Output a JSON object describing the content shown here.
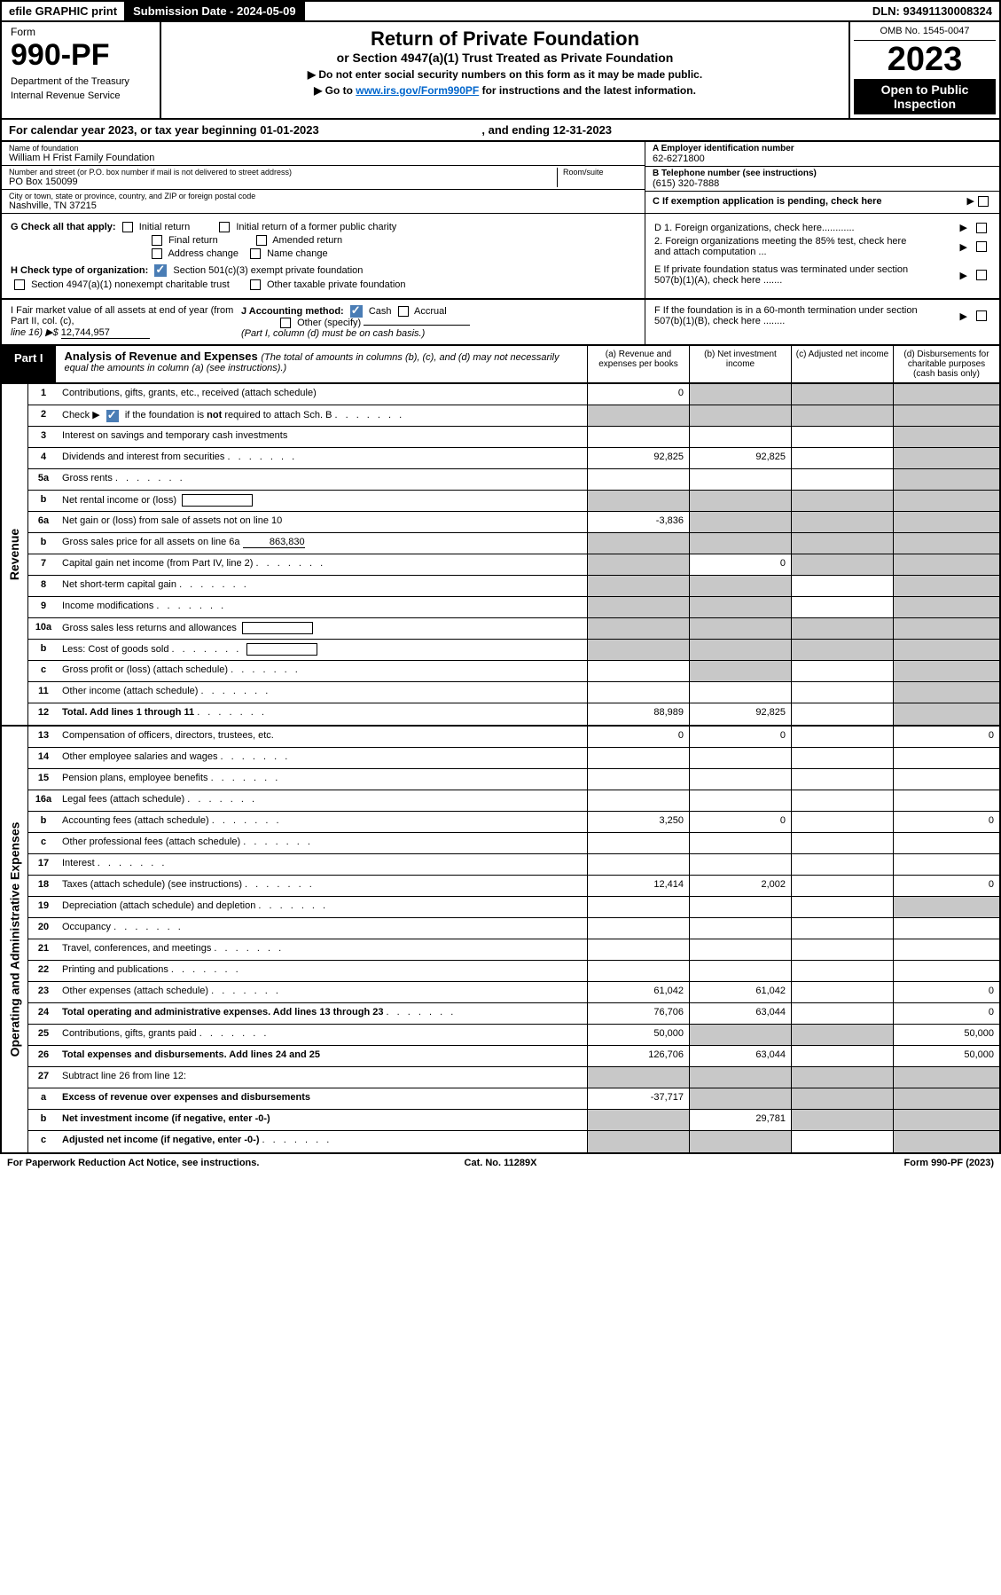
{
  "top": {
    "efile": "efile GRAPHIC print",
    "subdate_label": "Submission Date - 2024-05-09",
    "dln": "DLN: 93491130008324"
  },
  "header": {
    "form_word": "Form",
    "form_no": "990-PF",
    "dept1": "Department of the Treasury",
    "dept2": "Internal Revenue Service",
    "title1": "Return of Private Foundation",
    "title2": "or Section 4947(a)(1) Trust Treated as Private Foundation",
    "instr1": "▶ Do not enter social security numbers on this form as it may be made public.",
    "instr2_pre": "▶ Go to ",
    "instr2_link": "www.irs.gov/Form990PF",
    "instr2_post": " for instructions and the latest information.",
    "omb": "OMB No. 1545-0047",
    "year": "2023",
    "open1": "Open to Public",
    "open2": "Inspection"
  },
  "cal_year": {
    "text_pre": "For calendar year 2023, or tax year beginning ",
    "begin": "01-01-2023",
    "text_mid": " , and ending ",
    "end": "12-31-2023"
  },
  "info": {
    "name_label": "Name of foundation",
    "name_value": "William H Frist Family Foundation",
    "addr_label": "Number and street (or P.O. box number if mail is not delivered to street address)",
    "addr_value": "PO Box 150099",
    "room_label": "Room/suite",
    "city_label": "City or town, state or province, country, and ZIP or foreign postal code",
    "city_value": "Nashville, TN  37215",
    "ein_label": "A Employer identification number",
    "ein_value": "62-6271800",
    "phone_label": "B Telephone number (see instructions)",
    "phone_value": "(615) 320-7888",
    "c_label": "C If exemption application is pending, check here"
  },
  "checks": {
    "g_label": "G Check all that apply:",
    "g_opts": [
      "Initial return",
      "Initial return of a former public charity",
      "Final return",
      "Amended return",
      "Address change",
      "Name change"
    ],
    "h_label": "H Check type of organization:",
    "h_opt1": "Section 501(c)(3) exempt private foundation",
    "h_opt2": "Section 4947(a)(1) nonexempt charitable trust",
    "h_opt3": "Other taxable private foundation",
    "d1": "D 1. Foreign organizations, check here............",
    "d2": "2. Foreign organizations meeting the 85% test, check here and attach computation ...",
    "e": "E  If private foundation status was terminated under section 507(b)(1)(A), check here .......",
    "i_label": "I Fair market value of all assets at end of year (from Part II, col. (c),",
    "i_line": "line 16) ▶$ ",
    "i_value": "12,744,957",
    "j_label": "J Accounting method:",
    "j_cash": "Cash",
    "j_accrual": "Accrual",
    "j_other": "Other (specify)",
    "j_note": "(Part I, column (d) must be on cash basis.)",
    "f": "F  If the foundation is in a 60-month termination under section 507(b)(1)(B), check here ........"
  },
  "part1": {
    "label": "Part I",
    "title_bold": "Analysis of Revenue and Expenses ",
    "title_rest": "(The total of amounts in columns (b), (c), and (d) may not necessarily equal the amounts in column (a) (see instructions).)",
    "col_a": "(a)  Revenue and expenses per books",
    "col_b": "(b)  Net investment income",
    "col_c": "(c)  Adjusted net income",
    "col_d": "(d)  Disbursements for charitable purposes (cash basis only)"
  },
  "sides": {
    "revenue": "Revenue",
    "expenses": "Operating and Administrative Expenses"
  },
  "rows": [
    {
      "n": "1",
      "d": "Contributions, gifts, grants, etc., received (attach schedule)",
      "a": "0",
      "b": "g",
      "c": "g",
      "dd": "g"
    },
    {
      "n": "2",
      "d": "Check ▶ ☑ if the foundation is not required to attach Sch. B",
      "dots": 1,
      "a": "g",
      "b": "g",
      "c": "g",
      "dd": "g",
      "checked": true
    },
    {
      "n": "3",
      "d": "Interest on savings and temporary cash investments",
      "a": "",
      "b": "",
      "c": "",
      "dd": "g"
    },
    {
      "n": "4",
      "d": "Dividends and interest from securities",
      "dots": 1,
      "a": "92,825",
      "b": "92,825",
      "c": "",
      "dd": "g"
    },
    {
      "n": "5a",
      "d": "Gross rents",
      "dots": 1,
      "a": "",
      "b": "",
      "c": "",
      "dd": "g"
    },
    {
      "n": "b",
      "d": "Net rental income or (loss)",
      "box": 1,
      "a": "g",
      "b": "g",
      "c": "g",
      "dd": "g"
    },
    {
      "n": "6a",
      "d": "Net gain or (loss) from sale of assets not on line 10",
      "a": "-3,836",
      "b": "g",
      "c": "g",
      "dd": "g"
    },
    {
      "n": "b",
      "d": "Gross sales price for all assets on line 6a",
      "uval": "863,830",
      "a": "g",
      "b": "g",
      "c": "g",
      "dd": "g"
    },
    {
      "n": "7",
      "d": "Capital gain net income (from Part IV, line 2)",
      "dots": 1,
      "a": "g",
      "b": "0",
      "c": "g",
      "dd": "g"
    },
    {
      "n": "8",
      "d": "Net short-term capital gain",
      "dots": 1,
      "a": "g",
      "b": "g",
      "c": "",
      "dd": "g"
    },
    {
      "n": "9",
      "d": "Income modifications",
      "dots": 1,
      "a": "g",
      "b": "g",
      "c": "",
      "dd": "g"
    },
    {
      "n": "10a",
      "d": "Gross sales less returns and allowances",
      "box": 1,
      "a": "g",
      "b": "g",
      "c": "g",
      "dd": "g"
    },
    {
      "n": "b",
      "d": "Less: Cost of goods sold",
      "dots": 1,
      "box": 1,
      "a": "g",
      "b": "g",
      "c": "g",
      "dd": "g"
    },
    {
      "n": "c",
      "d": "Gross profit or (loss) (attach schedule)",
      "dots": 1,
      "a": "",
      "b": "g",
      "c": "",
      "dd": "g"
    },
    {
      "n": "11",
      "d": "Other income (attach schedule)",
      "dots": 1,
      "a": "",
      "b": "",
      "c": "",
      "dd": "g"
    },
    {
      "n": "12",
      "d": "Total. Add lines 1 through 11",
      "dots": 1,
      "bold": 1,
      "a": "88,989",
      "b": "92,825",
      "c": "",
      "dd": "g"
    }
  ],
  "rows2": [
    {
      "n": "13",
      "d": "Compensation of officers, directors, trustees, etc.",
      "a": "0",
      "b": "0",
      "c": "",
      "dd": "0"
    },
    {
      "n": "14",
      "d": "Other employee salaries and wages",
      "dots": 1,
      "a": "",
      "b": "",
      "c": "",
      "dd": ""
    },
    {
      "n": "15",
      "d": "Pension plans, employee benefits",
      "dots": 1,
      "a": "",
      "b": "",
      "c": "",
      "dd": ""
    },
    {
      "n": "16a",
      "d": "Legal fees (attach schedule)",
      "dots": 1,
      "a": "",
      "b": "",
      "c": "",
      "dd": ""
    },
    {
      "n": "b",
      "d": "Accounting fees (attach schedule)",
      "dots": 1,
      "a": "3,250",
      "b": "0",
      "c": "",
      "dd": "0"
    },
    {
      "n": "c",
      "d": "Other professional fees (attach schedule)",
      "dots": 1,
      "a": "",
      "b": "",
      "c": "",
      "dd": ""
    },
    {
      "n": "17",
      "d": "Interest",
      "dots": 1,
      "a": "",
      "b": "",
      "c": "",
      "dd": ""
    },
    {
      "n": "18",
      "d": "Taxes (attach schedule) (see instructions)",
      "dots": 1,
      "a": "12,414",
      "b": "2,002",
      "c": "",
      "dd": "0"
    },
    {
      "n": "19",
      "d": "Depreciation (attach schedule) and depletion",
      "dots": 1,
      "a": "",
      "b": "",
      "c": "",
      "dd": "g"
    },
    {
      "n": "20",
      "d": "Occupancy",
      "dots": 1,
      "a": "",
      "b": "",
      "c": "",
      "dd": ""
    },
    {
      "n": "21",
      "d": "Travel, conferences, and meetings",
      "dots": 1,
      "a": "",
      "b": "",
      "c": "",
      "dd": ""
    },
    {
      "n": "22",
      "d": "Printing and publications",
      "dots": 1,
      "a": "",
      "b": "",
      "c": "",
      "dd": ""
    },
    {
      "n": "23",
      "d": "Other expenses (attach schedule)",
      "dots": 1,
      "a": "61,042",
      "b": "61,042",
      "c": "",
      "dd": "0"
    },
    {
      "n": "24",
      "d": "Total operating and administrative expenses. Add lines 13 through 23",
      "dots": 1,
      "bold": 1,
      "a": "76,706",
      "b": "63,044",
      "c": "",
      "dd": "0"
    },
    {
      "n": "25",
      "d": "Contributions, gifts, grants paid",
      "dots": 1,
      "a": "50,000",
      "b": "g",
      "c": "g",
      "dd": "50,000"
    },
    {
      "n": "26",
      "d": "Total expenses and disbursements. Add lines 24 and 25",
      "bold": 1,
      "a": "126,706",
      "b": "63,044",
      "c": "",
      "dd": "50,000"
    },
    {
      "n": "27",
      "d": "Subtract line 26 from line 12:",
      "a": "g",
      "b": "g",
      "c": "g",
      "dd": "g"
    },
    {
      "n": "a",
      "d": "Excess of revenue over expenses and disbursements",
      "bold": 1,
      "a": "-37,717",
      "b": "g",
      "c": "g",
      "dd": "g"
    },
    {
      "n": "b",
      "d": "Net investment income (if negative, enter -0-)",
      "bold": 1,
      "a": "g",
      "b": "29,781",
      "c": "g",
      "dd": "g"
    },
    {
      "n": "c",
      "d": "Adjusted net income (if negative, enter -0-)",
      "dots": 1,
      "bold": 1,
      "a": "g",
      "b": "g",
      "c": "",
      "dd": "g"
    }
  ],
  "footer": {
    "left": "For Paperwork Reduction Act Notice, see instructions.",
    "mid": "Cat. No. 11289X",
    "right": "Form 990-PF (2023)"
  },
  "colors": {
    "grey_cell": "#c8c8c8",
    "link": "#0066cc",
    "check_bg": "#4a7db5"
  }
}
